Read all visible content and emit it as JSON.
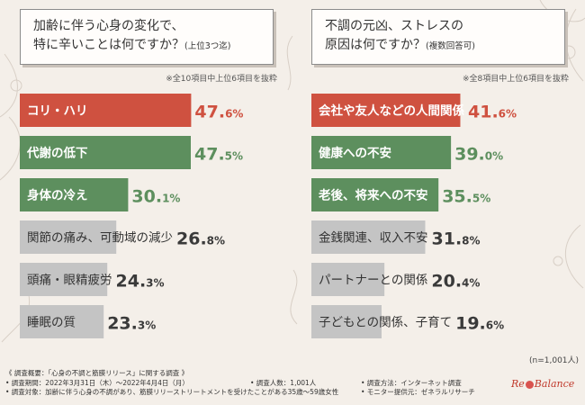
{
  "left": {
    "question_line1": "加齢に伴う心身の変化で、",
    "question_line2": "特に辛いことは何ですか？",
    "question_suffix": "(上位3つ迄)",
    "note": "※全10項目中上位6項目を抜粋"
  },
  "right": {
    "question_line1": "不調の元凶、ストレスの",
    "question_line2": "原因は何ですか？",
    "question_suffix": "(複数回答可)",
    "note": "※全8項目中上位6項目を抜粋"
  },
  "n_note": "(n=1,001人)",
  "footer": {
    "overview": "《 調査概要：「心身の不調と筋膜リリース」に関する調査 》",
    "period": "• 調査期間：2022年3月31日（木）～2022年4月4日（月）",
    "respondents": "• 調査人数：1,001人",
    "method": "• 調査方法：インターネット調査",
    "target": "• 調査対象：加齢に伴う心身の不調があり、筋膜リリーストリートメントを受けたことがある35歳～59歳女性",
    "provider": "• モニター提供元：ゼネラルリサーチ"
  },
  "logo": {
    "pre": "Re",
    "post": "Balance"
  },
  "colors": {
    "top1": "#cf5140",
    "top2": "#5d8f5e",
    "top3": "#5d8f5e",
    "rest": "#c4c4c4"
  },
  "chart_data": [
    {
      "type": "bar",
      "orientation": "horizontal",
      "categories": [
        "コリ・ハリ",
        "代謝の低下",
        "身体の冷え",
        "関節の痛み、可動域の減少",
        "頭痛・眼精疲労",
        "睡眠の質"
      ],
      "values": [
        47.6,
        47.5,
        30.1,
        26.8,
        24.3,
        23.3
      ],
      "value_labels": [
        "47.6%",
        "47.5%",
        "30.1%",
        "26.8%",
        "24.3%",
        "23.3%"
      ],
      "unit": "%",
      "xlim": [
        0,
        50
      ],
      "grid": false
    },
    {
      "type": "bar",
      "orientation": "horizontal",
      "categories": [
        "会社や友人などの人間関係",
        "健康への不安",
        "老後、将来への不安",
        "金銭関連、収入不安",
        "パートナーとの関係",
        "子どもとの関係、子育て"
      ],
      "values": [
        41.6,
        39.0,
        35.5,
        31.8,
        20.4,
        19.6
      ],
      "value_labels": [
        "41.6%",
        "39.0%",
        "35.5%",
        "31.8%",
        "20.4%",
        "19.6%"
      ],
      "unit": "%",
      "xlim": [
        0,
        44
      ],
      "grid": false
    }
  ]
}
